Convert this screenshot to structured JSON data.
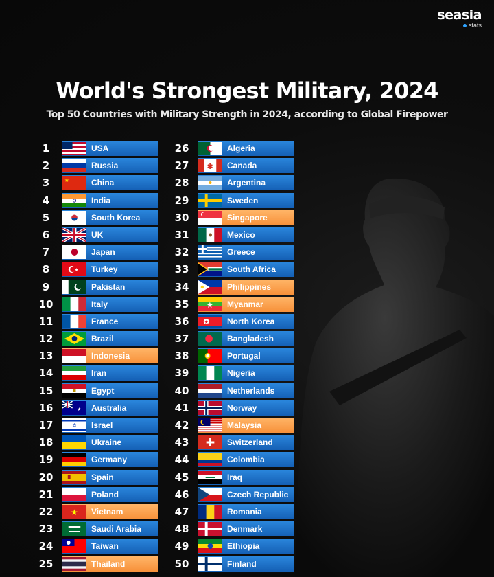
{
  "brand": {
    "name": "seasia",
    "sub": "stats"
  },
  "title": "World's Strongest Military, 2024",
  "subtitle": "Top 50 Countries with Military Strength in 2024, according to Global Firepower",
  "colors": {
    "bar": "#1f74cd",
    "highlight": "#f7a14f",
    "background": "#0d0d0d"
  },
  "countries": [
    {
      "rank": "1",
      "name": "USA",
      "flag": "us"
    },
    {
      "rank": "2",
      "name": "Russia",
      "flag": "ru"
    },
    {
      "rank": "3",
      "name": "China",
      "flag": "cn"
    },
    {
      "rank": "4",
      "name": "India",
      "flag": "in"
    },
    {
      "rank": "5",
      "name": "South Korea",
      "flag": "kr"
    },
    {
      "rank": "6",
      "name": "UK",
      "flag": "gb"
    },
    {
      "rank": "7",
      "name": "Japan",
      "flag": "jp"
    },
    {
      "rank": "8",
      "name": "Turkey",
      "flag": "tr"
    },
    {
      "rank": "9",
      "name": "Pakistan",
      "flag": "pk"
    },
    {
      "rank": "10",
      "name": "Italy",
      "flag": "it"
    },
    {
      "rank": "11",
      "name": "France",
      "flag": "fr"
    },
    {
      "rank": "12",
      "name": "Brazil",
      "flag": "br"
    },
    {
      "rank": "13",
      "name": "Indonesia",
      "flag": "id",
      "highlight": true
    },
    {
      "rank": "14",
      "name": "Iran",
      "flag": "ir"
    },
    {
      "rank": "15",
      "name": "Egypt",
      "flag": "eg"
    },
    {
      "rank": "16",
      "name": "Australia",
      "flag": "au"
    },
    {
      "rank": "17",
      "name": "Israel",
      "flag": "il"
    },
    {
      "rank": "18",
      "name": "Ukraine",
      "flag": "ua"
    },
    {
      "rank": "19",
      "name": "Germany",
      "flag": "de"
    },
    {
      "rank": "20",
      "name": "Spain",
      "flag": "es"
    },
    {
      "rank": "21",
      "name": "Poland",
      "flag": "pl"
    },
    {
      "rank": "22",
      "name": "Vietnam",
      "flag": "vn",
      "highlight": true
    },
    {
      "rank": "23",
      "name": "Saudi Arabia",
      "flag": "sa"
    },
    {
      "rank": "24",
      "name": "Taiwan",
      "flag": "tw"
    },
    {
      "rank": "25",
      "name": "Thailand",
      "flag": "th",
      "highlight": true
    },
    {
      "rank": "26",
      "name": "Algeria",
      "flag": "dz"
    },
    {
      "rank": "27",
      "name": "Canada",
      "flag": "ca"
    },
    {
      "rank": "28",
      "name": "Argentina",
      "flag": "ar"
    },
    {
      "rank": "29",
      "name": "Sweden",
      "flag": "se"
    },
    {
      "rank": "30",
      "name": "Singapore",
      "flag": "sg",
      "highlight": true
    },
    {
      "rank": "31",
      "name": "Mexico",
      "flag": "mx"
    },
    {
      "rank": "32",
      "name": "Greece",
      "flag": "gr"
    },
    {
      "rank": "33",
      "name": "South Africa",
      "flag": "za"
    },
    {
      "rank": "34",
      "name": "Philippines",
      "flag": "ph",
      "highlight": true
    },
    {
      "rank": "35",
      "name": "Myanmar",
      "flag": "mm",
      "highlight": true
    },
    {
      "rank": "36",
      "name": "North Korea",
      "flag": "kp"
    },
    {
      "rank": "37",
      "name": "Bangladesh",
      "flag": "bd"
    },
    {
      "rank": "38",
      "name": "Portugal",
      "flag": "pt"
    },
    {
      "rank": "39",
      "name": "Nigeria",
      "flag": "ng"
    },
    {
      "rank": "40",
      "name": "Netherlands",
      "flag": "nl"
    },
    {
      "rank": "41",
      "name": "Norway",
      "flag": "no"
    },
    {
      "rank": "42",
      "name": "Malaysia",
      "flag": "my",
      "highlight": true
    },
    {
      "rank": "43",
      "name": "Switzerland",
      "flag": "ch"
    },
    {
      "rank": "44",
      "name": "Colombia",
      "flag": "co"
    },
    {
      "rank": "45",
      "name": "Iraq",
      "flag": "iq"
    },
    {
      "rank": "46",
      "name": "Czech Republic",
      "flag": "cz"
    },
    {
      "rank": "47",
      "name": "Romania",
      "flag": "ro"
    },
    {
      "rank": "48",
      "name": "Denmark",
      "flag": "dk"
    },
    {
      "rank": "49",
      "name": "Ethiopia",
      "flag": "et"
    },
    {
      "rank": "50",
      "name": "Finland",
      "flag": "fi"
    }
  ]
}
